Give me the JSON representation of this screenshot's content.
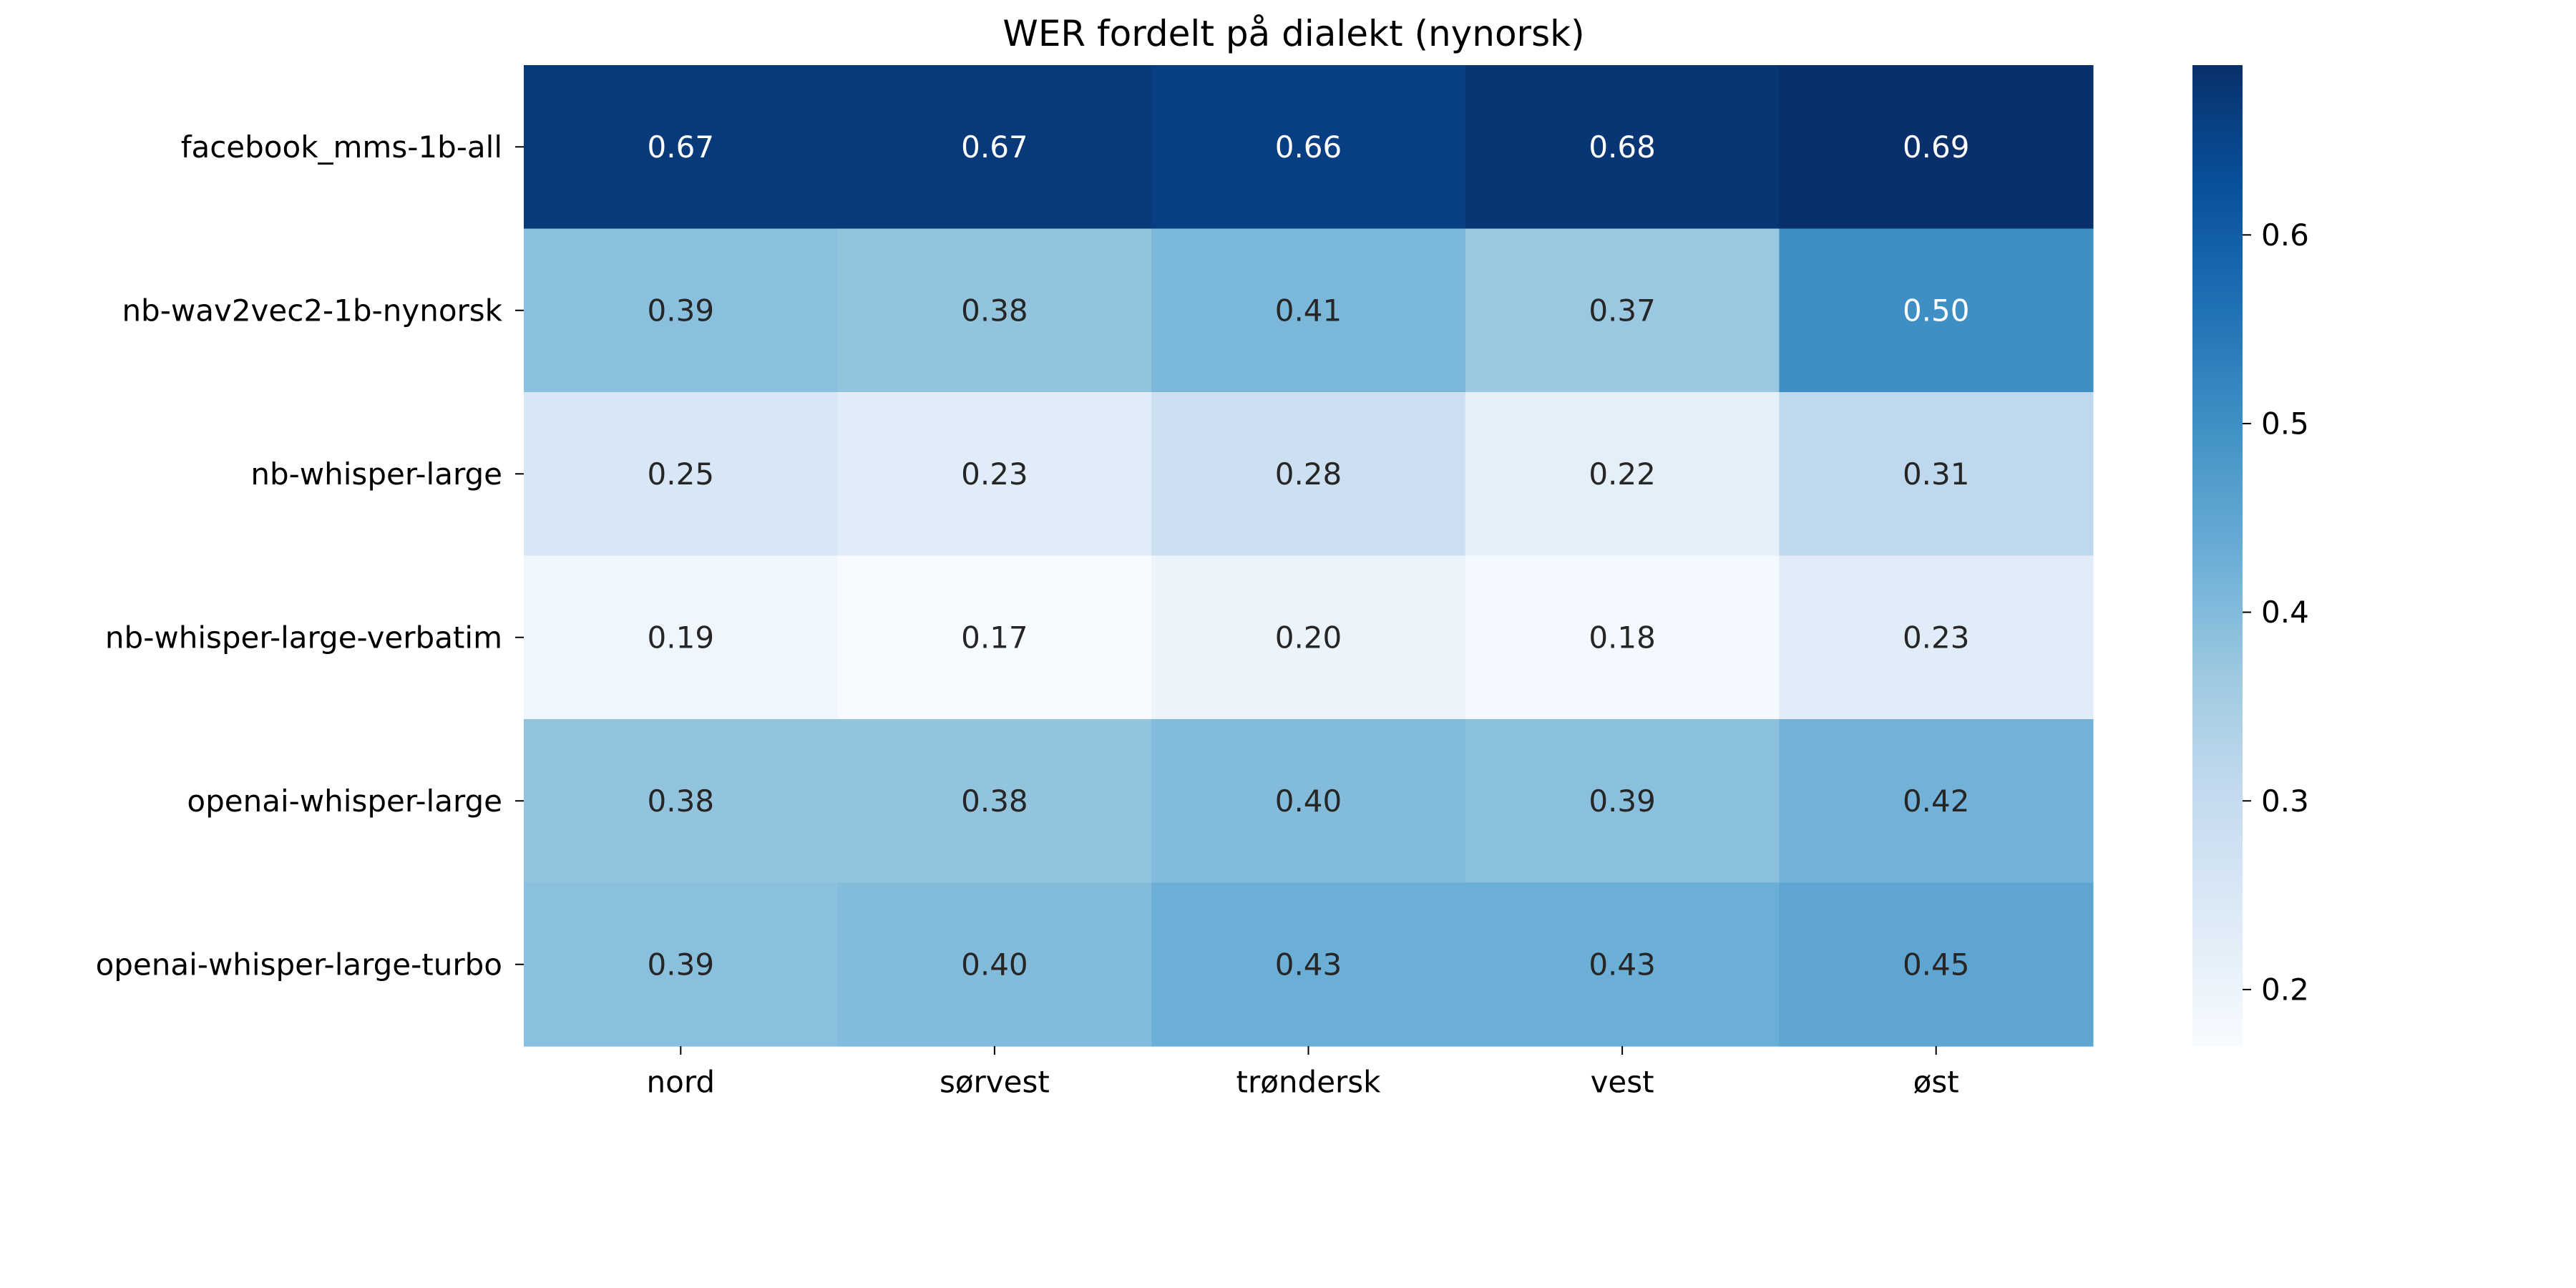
{
  "chart_data": {
    "type": "heatmap",
    "title": "WER fordelt på dialekt (nynorsk)",
    "xlabel": "",
    "ylabel": "",
    "x_categories": [
      "nord",
      "sørvest",
      "trøndersk",
      "vest",
      "øst"
    ],
    "y_categories": [
      "facebook_mms-1b-all",
      "nb-wav2vec2-1b-nynorsk",
      "nb-whisper-large",
      "nb-whisper-large-verbatim",
      "openai-whisper-large",
      "openai-whisper-large-turbo"
    ],
    "values": [
      [
        0.67,
        0.67,
        0.66,
        0.68,
        0.69
      ],
      [
        0.39,
        0.38,
        0.41,
        0.37,
        0.5
      ],
      [
        0.25,
        0.23,
        0.28,
        0.22,
        0.31
      ],
      [
        0.19,
        0.17,
        0.2,
        0.18,
        0.23
      ],
      [
        0.38,
        0.38,
        0.4,
        0.39,
        0.42
      ],
      [
        0.39,
        0.4,
        0.43,
        0.43,
        0.45
      ]
    ],
    "value_labels": [
      [
        "0.67",
        "0.67",
        "0.66",
        "0.68",
        "0.69"
      ],
      [
        "0.39",
        "0.38",
        "0.41",
        "0.37",
        "0.50"
      ],
      [
        "0.25",
        "0.23",
        "0.28",
        "0.22",
        "0.31"
      ],
      [
        "0.19",
        "0.17",
        "0.20",
        "0.18",
        "0.23"
      ],
      [
        "0.38",
        "0.38",
        "0.40",
        "0.39",
        "0.42"
      ],
      [
        "0.39",
        "0.40",
        "0.43",
        "0.43",
        "0.45"
      ]
    ],
    "colormap": "Blues",
    "vmin": 0.17,
    "vmax": 0.69,
    "colorbar": {
      "ticks": [
        0.2,
        0.3,
        0.4,
        0.5,
        0.6
      ],
      "tick_labels": [
        "0.2",
        "0.3",
        "0.4",
        "0.5",
        "0.6"
      ]
    },
    "grid": false,
    "colors": {
      "text_dark": "#262626",
      "text_light": "#ffffff",
      "axis": "#000000"
    }
  }
}
